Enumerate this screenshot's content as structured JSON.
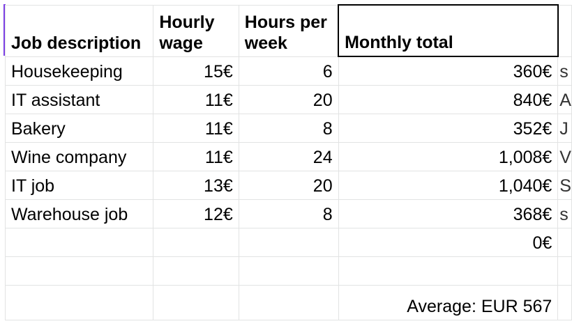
{
  "columns": {
    "job": "Job description",
    "wage": "Hourly wage",
    "hours": "Hours per week",
    "monthly": "Monthly total"
  },
  "rows": [
    {
      "job": "Housekeeping",
      "wage": "15€",
      "hours": "6",
      "monthly": "360€",
      "next": "s"
    },
    {
      "job": "IT assistant",
      "wage": "11€",
      "hours": "20",
      "monthly": "840€",
      "next": "A"
    },
    {
      "job": "Bakery",
      "wage": "11€",
      "hours": "8",
      "monthly": "352€",
      "next": "J"
    },
    {
      "job": "Wine company",
      "wage": "11€",
      "hours": "24",
      "monthly": "1,008€",
      "next": "V"
    },
    {
      "job": "IT job",
      "wage": "13€",
      "hours": "20",
      "monthly": "1,040€",
      "next": "S"
    },
    {
      "job": "Warehouse job",
      "wage": "12€",
      "hours": "8",
      "monthly": "368€",
      "next": "s"
    },
    {
      "job": "",
      "wage": "",
      "hours": "",
      "monthly": "0€",
      "next": ""
    },
    {
      "job": "",
      "wage": "",
      "hours": "",
      "monthly": "",
      "next": ""
    },
    {
      "job": "",
      "wage": "",
      "hours": "",
      "monthly": "",
      "next": ""
    }
  ],
  "summary": {
    "average": "Average: EUR 567"
  }
}
